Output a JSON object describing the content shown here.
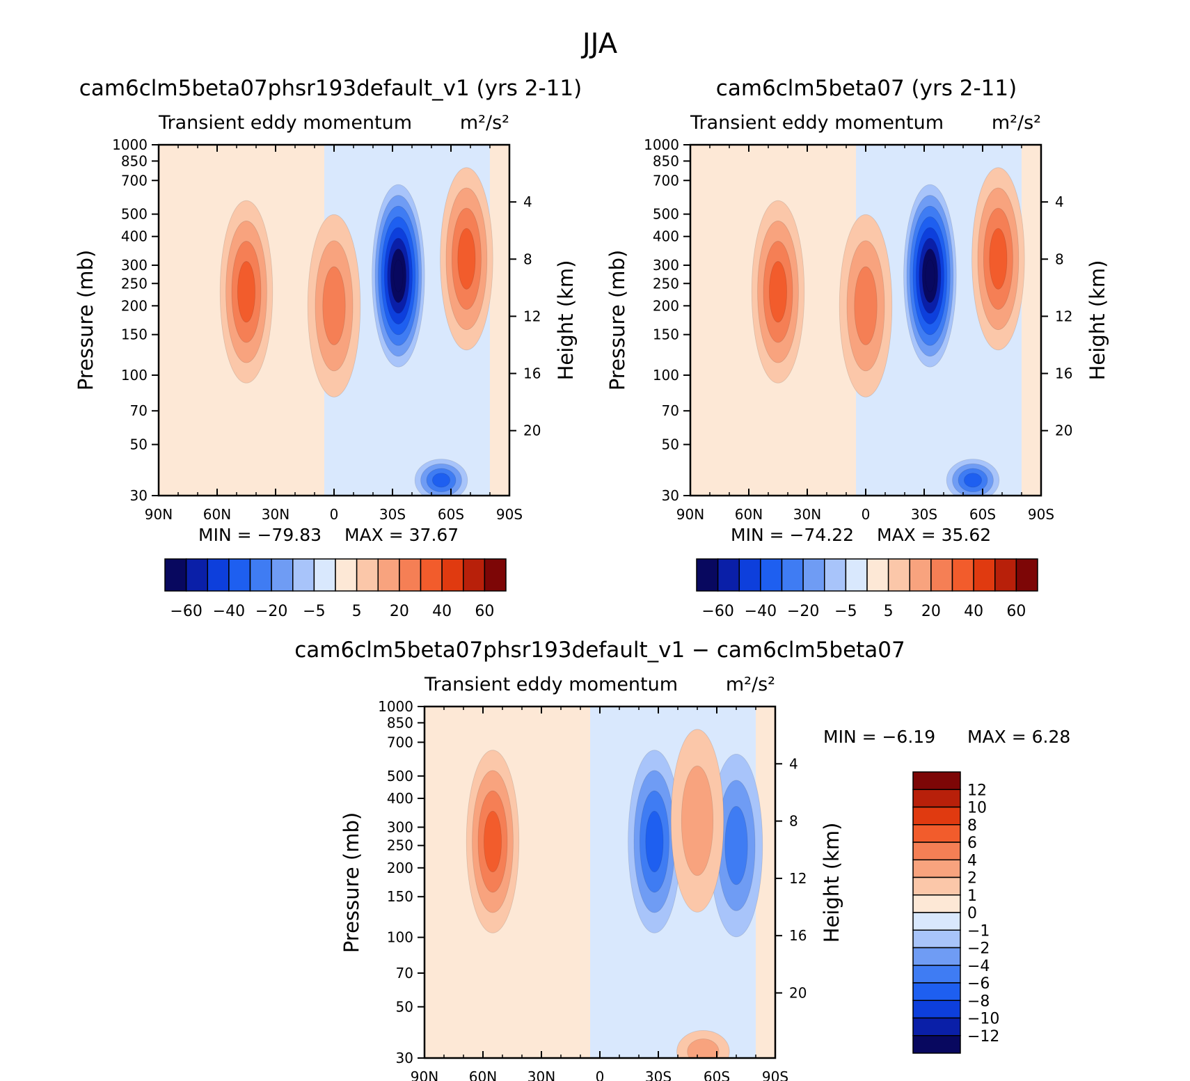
{
  "figure": {
    "title": "JJA"
  },
  "colors": {
    "main_levels": [
      "#08085f",
      "#0a1fa8",
      "#0d3fdc",
      "#1e5ff0",
      "#3f7cf3",
      "#6f9cf4",
      "#a8c4fa",
      "#d9e8fd",
      "#fde8d6",
      "#fbc7a9",
      "#f8a37e",
      "#f57f55",
      "#f25c2c",
      "#e03a10",
      "#b8200a",
      "#7d0606"
    ],
    "diff_levels": [
      "#08085f",
      "#0a1fa8",
      "#0d3fdc",
      "#1e5ff0",
      "#3f7cf3",
      "#6f9cf4",
      "#a8c4fa",
      "#d9e8fd",
      "#fde8d6",
      "#fbc7a9",
      "#f8a37e",
      "#f57f55",
      "#f25c2c",
      "#e03a10",
      "#b8200a",
      "#7d0606"
    ]
  },
  "chart_data": [
    {
      "type": "heatmap",
      "title": "cam6clm5beta07phsr193default_v1 (yrs 2-11)",
      "subtitle_left": "Transient eddy momentum",
      "units": "m²/s²",
      "xlabel": "",
      "ylabel": "Pressure (mb)",
      "ylabel_right": "Height (km)",
      "xticks": [
        "90N",
        "60N",
        "30N",
        "0",
        "30S",
        "60S",
        "90S"
      ],
      "yticks": [
        "30",
        "50",
        "70",
        "100",
        "150",
        "200",
        "250",
        "300",
        "400",
        "500",
        "700",
        "850",
        "1000"
      ],
      "yticks_right": [
        "20",
        "16",
        "12",
        "8",
        "4"
      ],
      "min_label": "MIN = −79.83",
      "max_label": "MAX = 37.67",
      "min": -79.83,
      "max": 37.67,
      "colorbar_labels": [
        "−60",
        "−40",
        "−20",
        "−5",
        "5",
        "20",
        "40",
        "60"
      ],
      "colorbar_levels": [
        -70,
        -60,
        -50,
        -40,
        -30,
        -20,
        -10,
        -5,
        0,
        5,
        10,
        20,
        30,
        40,
        50,
        60,
        70
      ],
      "features": [
        {
          "lat": -33,
          "p": 270,
          "value": -79.83
        },
        {
          "lat": 45,
          "p": 230,
          "value": 33
        },
        {
          "lat": 0,
          "p": 200,
          "value": 22
        },
        {
          "lat": -68,
          "p": 320,
          "value": 37.67
        },
        {
          "lat": -55,
          "p": 35,
          "value": -38
        }
      ]
    },
    {
      "type": "heatmap",
      "title": "cam6clm5beta07 (yrs 2-11)",
      "subtitle_left": "Transient eddy momentum",
      "units": "m²/s²",
      "xlabel": "",
      "ylabel": "Pressure (mb)",
      "ylabel_right": "Height (km)",
      "xticks": [
        "90N",
        "60N",
        "30N",
        "0",
        "30S",
        "60S",
        "90S"
      ],
      "yticks": [
        "30",
        "50",
        "70",
        "100",
        "150",
        "200",
        "250",
        "300",
        "400",
        "500",
        "700",
        "850",
        "1000"
      ],
      "yticks_right": [
        "20",
        "16",
        "12",
        "8",
        "4"
      ],
      "min_label": "MIN = −74.22",
      "max_label": "MAX = 35.62",
      "min": -74.22,
      "max": 35.62,
      "colorbar_labels": [
        "−60",
        "−40",
        "−20",
        "−5",
        "5",
        "20",
        "40",
        "60"
      ],
      "colorbar_levels": [
        -70,
        -60,
        -50,
        -40,
        -30,
        -20,
        -10,
        -5,
        0,
        5,
        10,
        20,
        30,
        40,
        50,
        60,
        70
      ],
      "features": [
        {
          "lat": -33,
          "p": 270,
          "value": -74.22
        },
        {
          "lat": 45,
          "p": 230,
          "value": 32
        },
        {
          "lat": 0,
          "p": 200,
          "value": 22
        },
        {
          "lat": -68,
          "p": 320,
          "value": 35.62
        },
        {
          "lat": -55,
          "p": 35,
          "value": -35
        }
      ]
    },
    {
      "type": "heatmap",
      "title": "cam6clm5beta07phsr193default_v1 − cam6clm5beta07",
      "subtitle_left": "Transient eddy momentum",
      "units": "m²/s²",
      "xlabel": "",
      "ylabel": "Pressure (mb)",
      "ylabel_right": "Height (km)",
      "xticks": [
        "90N",
        "60N",
        "30N",
        "0",
        "30S",
        "60S",
        "90S"
      ],
      "yticks": [
        "30",
        "50",
        "70",
        "100",
        "150",
        "200",
        "250",
        "300",
        "400",
        "500",
        "700",
        "850",
        "1000"
      ],
      "yticks_right": [
        "20",
        "16",
        "12",
        "8",
        "4"
      ],
      "min_label": "MIN = −6.19",
      "max_label": "MAX = 6.28",
      "min": -6.19,
      "max": 6.28,
      "colorbar_labels": [
        "12",
        "10",
        "8",
        "6",
        "4",
        "2",
        "1",
        "0",
        "−1",
        "−2",
        "−4",
        "−6",
        "−8",
        "−10",
        "−12"
      ],
      "colorbar_levels": [
        -14,
        -12,
        -10,
        -8,
        -6,
        -4,
        -2,
        -1,
        0,
        1,
        2,
        4,
        6,
        8,
        10,
        12,
        14
      ],
      "features": [
        {
          "lat": 55,
          "p": 260,
          "value": 6.28
        },
        {
          "lat": -28,
          "p": 260,
          "value": -6.19
        },
        {
          "lat": -70,
          "p": 250,
          "value": -5.5
        },
        {
          "lat": -50,
          "p": 320,
          "value": 3.5
        },
        {
          "lat": -53,
          "p": 32,
          "value": 2
        }
      ]
    }
  ]
}
